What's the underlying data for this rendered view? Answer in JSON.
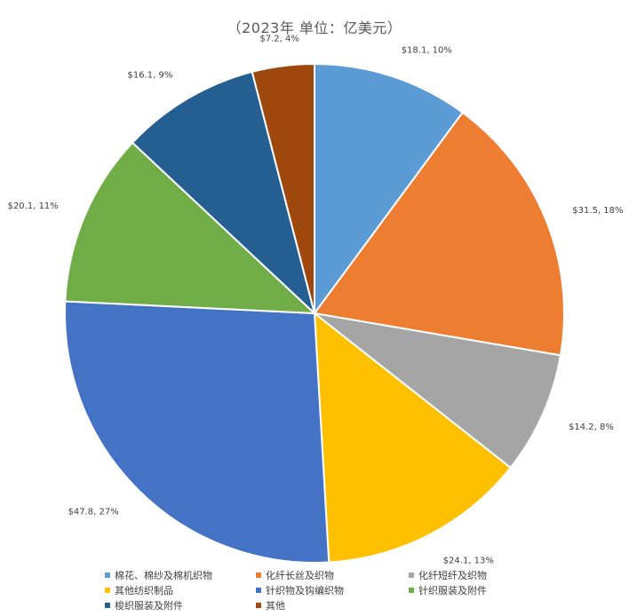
{
  "title": "（2023年 单位：亿美元）",
  "chart_data": {
    "type": "pie",
    "title": "（2023年 单位：亿美元）",
    "unit": "亿美元",
    "start_angle_deg": 0,
    "direction": "clockwise",
    "legend_position": "bottom",
    "slices": [
      {
        "name": "棉花、棉纱及棉机织物",
        "value": 18.1,
        "percent": 10,
        "label": "$18.1, 10%",
        "color": "#5B9BD5"
      },
      {
        "name": "化纤长丝及织物",
        "value": 31.5,
        "percent": 18,
        "label": "$31.5, 18%",
        "color": "#ED7D31"
      },
      {
        "name": "化纤短纤及织物",
        "value": 14.2,
        "percent": 8,
        "label": "$14.2, 8%",
        "color": "#A5A5A5"
      },
      {
        "name": "其他纺织制品",
        "value": 24.1,
        "percent": 13,
        "label": "$24.1, 13%",
        "color": "#FFC000"
      },
      {
        "name": "针织物及钩编织物",
        "value": 47.8,
        "percent": 27,
        "label": "$47.8, 27%",
        "color": "#4472C4"
      },
      {
        "name": "针织服装及附件",
        "value": 20.1,
        "percent": 11,
        "label": "$20.1, 11%",
        "color": "#70AD47"
      },
      {
        "name": "梭织服装及附件",
        "value": 16.1,
        "percent": 9,
        "label": "$16.1, 9%",
        "color": "#255E91"
      },
      {
        "name": "其他",
        "value": 7.2,
        "percent": 4,
        "label": "$7.2, 4%",
        "color": "#9E480E"
      }
    ]
  }
}
